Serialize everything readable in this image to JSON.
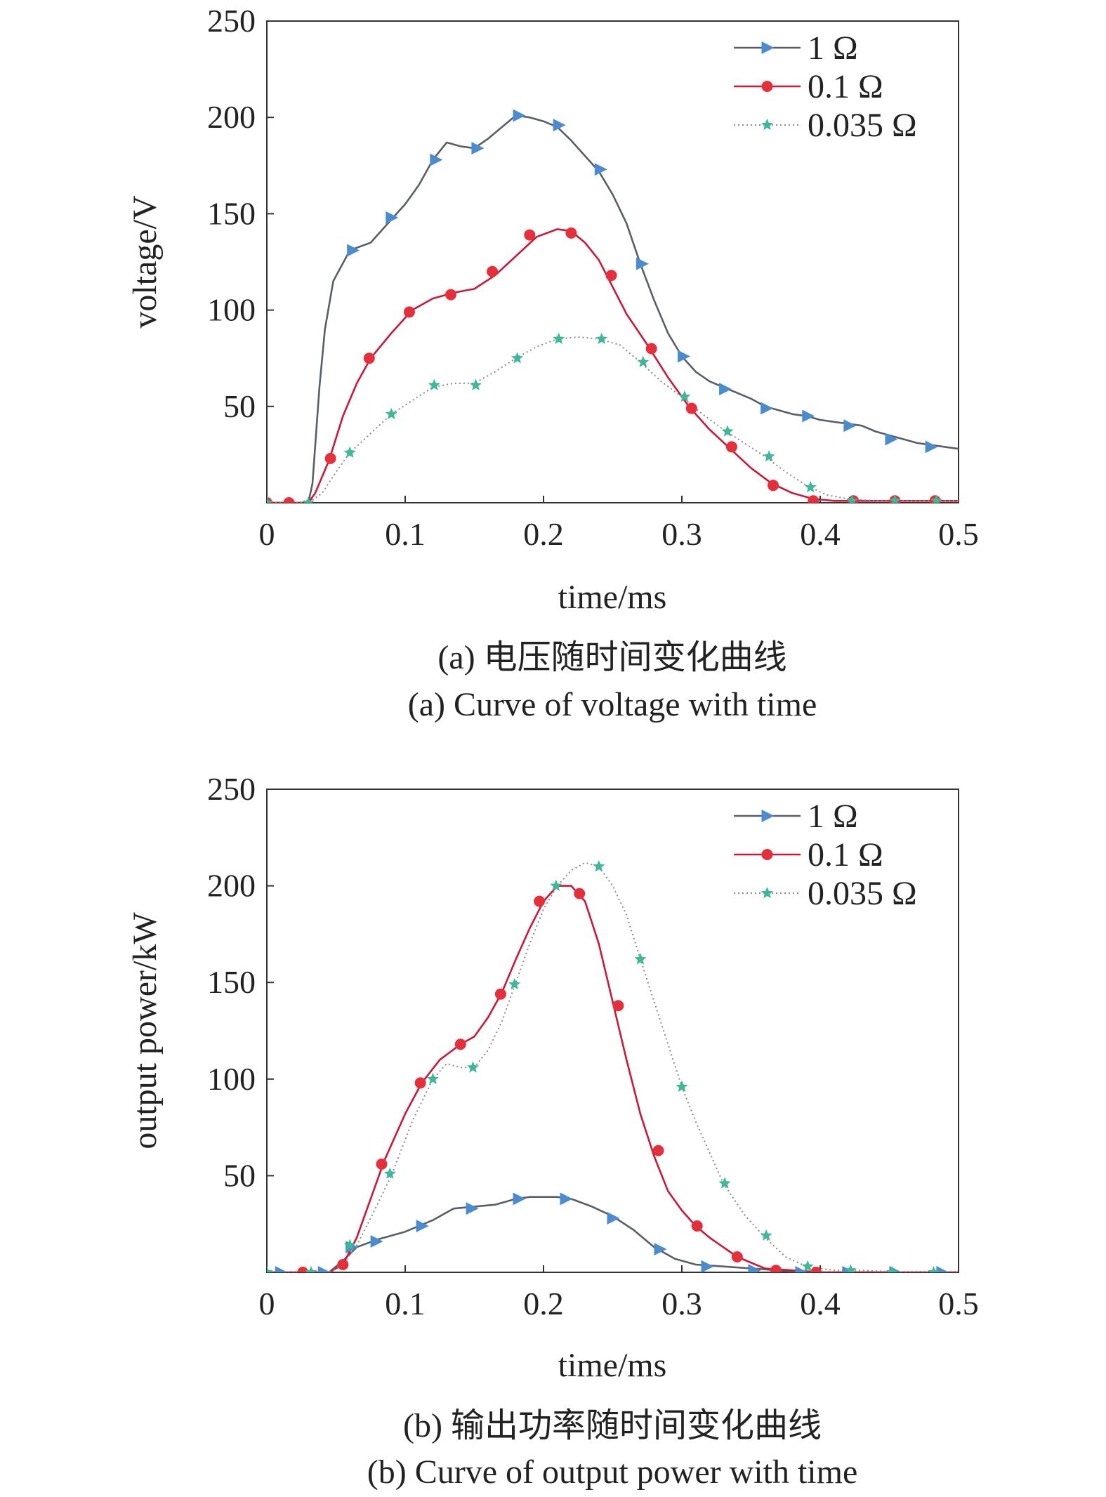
{
  "chart_data": [
    {
      "type": "line",
      "xlabel": "time/ms",
      "ylabel": "voltage/V",
      "xlim": [
        0,
        0.5
      ],
      "ylim": [
        0,
        250
      ],
      "xticks": [
        "0",
        "0.1",
        "0.2",
        "0.3",
        "0.4",
        "0.5"
      ],
      "yticks": [
        "50",
        "100",
        "150",
        "200",
        "250"
      ],
      "legend_position": "top-right",
      "grid": false,
      "caption_cn": "(a) 电压随时间变化曲线",
      "caption_en": "(a) Curve of voltage with time",
      "series": [
        {
          "name": "1 Ω",
          "color": "#5a5f66",
          "marker": "triangle",
          "marker_color": "#4a8ccf",
          "dash": "solid",
          "x": [
            0,
            0.03,
            0.033,
            0.038,
            0.042,
            0.048,
            0.06,
            0.075,
            0.09,
            0.1,
            0.11,
            0.12,
            0.13,
            0.14,
            0.15,
            0.16,
            0.17,
            0.18,
            0.19,
            0.2,
            0.21,
            0.22,
            0.23,
            0.24,
            0.25,
            0.26,
            0.27,
            0.28,
            0.29,
            0.3,
            0.31,
            0.32,
            0.33,
            0.34,
            0.35,
            0.36,
            0.37,
            0.38,
            0.39,
            0.4,
            0.41,
            0.42,
            0.43,
            0.44,
            0.45,
            0.46,
            0.47,
            0.48,
            0.49,
            0.5
          ],
          "y": [
            0,
            0,
            10,
            60,
            90,
            115,
            131,
            135,
            147,
            155,
            165,
            178,
            187,
            185,
            184,
            189,
            195,
            201,
            200,
            198,
            195,
            188,
            180,
            172,
            160,
            145,
            124,
            105,
            88,
            76,
            68,
            63,
            60,
            57,
            54,
            50,
            48,
            46,
            45,
            43,
            42,
            41,
            40,
            37,
            35,
            33,
            31,
            30,
            29,
            28
          ],
          "markers_x": [
            0.062,
            0.09,
            0.122,
            0.152,
            0.182,
            0.211,
            0.241,
            0.271,
            0.301,
            0.331,
            0.361,
            0.391,
            0.421,
            0.451,
            0.48
          ],
          "markers_y": [
            131,
            148,
            178,
            184,
            201,
            196,
            173,
            124,
            76,
            59,
            49,
            45,
            40,
            33,
            29
          ]
        },
        {
          "name": "0.1 Ω",
          "color": "#c91838",
          "marker": "circle",
          "marker_color": "#e5303c",
          "dash": "solid",
          "x": [
            0,
            0.03,
            0.035,
            0.045,
            0.055,
            0.065,
            0.075,
            0.09,
            0.105,
            0.12,
            0.135,
            0.15,
            0.165,
            0.18,
            0.195,
            0.21,
            0.22,
            0.23,
            0.24,
            0.25,
            0.26,
            0.275,
            0.29,
            0.305,
            0.32,
            0.335,
            0.35,
            0.365,
            0.38,
            0.395,
            0.41,
            0.43,
            0.46,
            0.5
          ],
          "y": [
            0,
            0,
            5,
            22,
            45,
            62,
            75,
            88,
            100,
            106,
            109,
            111,
            118,
            128,
            138,
            142,
            141,
            135,
            126,
            112,
            98,
            82,
            65,
            50,
            38,
            28,
            18,
            10,
            5,
            2,
            1,
            1,
            1,
            1
          ],
          "markers_x": [
            0.0,
            0.016,
            0.046,
            0.074,
            0.103,
            0.133,
            0.163,
            0.19,
            0.22,
            0.249,
            0.278,
            0.307,
            0.336,
            0.366,
            0.395,
            0.424,
            0.454,
            0.483
          ],
          "markers_y": [
            0,
            0,
            23,
            75,
            99,
            108,
            120,
            139,
            140,
            118,
            80,
            49,
            29,
            9,
            1,
            1,
            1,
            1
          ]
        },
        {
          "name": "0.035 Ω",
          "color": "#8a8a8a",
          "marker": "star",
          "marker_color": "#3fb89a",
          "dash": "dotted",
          "x": [
            0,
            0.03,
            0.04,
            0.05,
            0.06,
            0.075,
            0.09,
            0.105,
            0.12,
            0.135,
            0.15,
            0.165,
            0.18,
            0.195,
            0.21,
            0.225,
            0.24,
            0.255,
            0.27,
            0.285,
            0.3,
            0.315,
            0.33,
            0.345,
            0.36,
            0.375,
            0.39,
            0.405,
            0.42,
            0.44,
            0.47,
            0.5
          ],
          "y": [
            0,
            0,
            5,
            16,
            26,
            36,
            46,
            53,
            60,
            62,
            62,
            68,
            75,
            81,
            85,
            86,
            85,
            82,
            73,
            63,
            55,
            46,
            38,
            31,
            24,
            16,
            9,
            4,
            2,
            1,
            1,
            1
          ],
          "markers_x": [
            0.0,
            0.03,
            0.06,
            0.09,
            0.121,
            0.151,
            0.181,
            0.211,
            0.242,
            0.272,
            0.302,
            0.333,
            0.363,
            0.393,
            0.423,
            0.454,
            0.484
          ],
          "markers_y": [
            0,
            0,
            26,
            46,
            61,
            61,
            75,
            85,
            85,
            73,
            55,
            37,
            24,
            8,
            1,
            1,
            1
          ]
        }
      ]
    },
    {
      "type": "line",
      "xlabel": "time/ms",
      "ylabel": "output power/kW",
      "xlim": [
        0,
        0.5
      ],
      "ylim": [
        0,
        250
      ],
      "xticks": [
        "0",
        "0.1",
        "0.2",
        "0.3",
        "0.4",
        "0.5"
      ],
      "yticks": [
        "50",
        "100",
        "150",
        "200",
        "250"
      ],
      "legend_position": "top-right",
      "grid": false,
      "caption_cn": "(b) 输出功率随时间变化曲线",
      "caption_en": "(b) Curve of output power with time",
      "series": [
        {
          "name": "1 Ω",
          "color": "#5a5f66",
          "marker": "triangle",
          "marker_color": "#4a8ccf",
          "dash": "solid",
          "x": [
            0,
            0.045,
            0.055,
            0.065,
            0.08,
            0.1,
            0.12,
            0.135,
            0.15,
            0.165,
            0.18,
            0.19,
            0.2,
            0.21,
            0.22,
            0.235,
            0.25,
            0.265,
            0.28,
            0.295,
            0.31,
            0.33,
            0.35,
            0.37,
            0.39,
            0.41,
            0.44,
            0.47,
            0.5
          ],
          "y": [
            0,
            0,
            6,
            13,
            17,
            21,
            27,
            33,
            34,
            35,
            38,
            39,
            39,
            39,
            38,
            34,
            29,
            22,
            13,
            7,
            4,
            3,
            2,
            1,
            0,
            0,
            0,
            0,
            0
          ],
          "markers_x": [
            0.0,
            0.01,
            0.041,
            0.061,
            0.079,
            0.112,
            0.148,
            0.182,
            0.216,
            0.25,
            0.284,
            0.318,
            0.352,
            0.386,
            0.42,
            0.454,
            0.488
          ],
          "markers_y": [
            0,
            0,
            0,
            13,
            16,
            24,
            33,
            38,
            38,
            28,
            12,
            3,
            1,
            0,
            0,
            0,
            0
          ]
        },
        {
          "name": "0.1 Ω",
          "color": "#c91838",
          "marker": "circle",
          "marker_color": "#e5303c",
          "dash": "solid",
          "x": [
            0,
            0.045,
            0.055,
            0.065,
            0.075,
            0.085,
            0.1,
            0.112,
            0.125,
            0.14,
            0.15,
            0.16,
            0.17,
            0.18,
            0.19,
            0.2,
            0.21,
            0.22,
            0.23,
            0.24,
            0.25,
            0.26,
            0.27,
            0.28,
            0.29,
            0.3,
            0.31,
            0.32,
            0.34,
            0.36,
            0.38,
            0.4,
            0.45,
            0.5
          ],
          "y": [
            0,
            0,
            4,
            18,
            38,
            58,
            82,
            98,
            110,
            118,
            122,
            132,
            145,
            162,
            178,
            192,
            200,
            200,
            192,
            170,
            140,
            110,
            82,
            60,
            42,
            32,
            24,
            18,
            8,
            2,
            1,
            0,
            0,
            0
          ],
          "markers_x": [
            0.026,
            0.055,
            0.083,
            0.111,
            0.14,
            0.169,
            0.197,
            0.226,
            0.254,
            0.283,
            0.311,
            0.34,
            0.368,
            0.397
          ],
          "markers_y": [
            0,
            4,
            56,
            98,
            118,
            144,
            192,
            196,
            138,
            63,
            24,
            8,
            1,
            0
          ]
        },
        {
          "name": "0.035 Ω",
          "color": "#8a8a8a",
          "marker": "star",
          "marker_color": "#3fb89a",
          "dash": "dotted",
          "x": [
            0,
            0.045,
            0.055,
            0.065,
            0.075,
            0.09,
            0.105,
            0.12,
            0.13,
            0.14,
            0.15,
            0.16,
            0.17,
            0.18,
            0.19,
            0.2,
            0.21,
            0.22,
            0.23,
            0.24,
            0.25,
            0.26,
            0.27,
            0.28,
            0.29,
            0.3,
            0.31,
            0.32,
            0.33,
            0.345,
            0.36,
            0.375,
            0.39,
            0.41,
            0.43,
            0.46,
            0.5
          ],
          "y": [
            0,
            0,
            4,
            14,
            28,
            50,
            78,
            100,
            108,
            106,
            106,
            115,
            130,
            150,
            170,
            188,
            200,
            208,
            212,
            210,
            200,
            185,
            162,
            140,
            118,
            96,
            78,
            62,
            46,
            30,
            18,
            8,
            3,
            1,
            1,
            0,
            0
          ],
          "markers_x": [
            0.0,
            0.032,
            0.06,
            0.089,
            0.12,
            0.149,
            0.179,
            0.209,
            0.24,
            0.27,
            0.3,
            0.331,
            0.361,
            0.391,
            0.422,
            0.452,
            0.482
          ],
          "markers_y": [
            0,
            0,
            14,
            51,
            100,
            106,
            149,
            200,
            210,
            162,
            96,
            46,
            19,
            3,
            1,
            0,
            0
          ]
        }
      ]
    }
  ]
}
